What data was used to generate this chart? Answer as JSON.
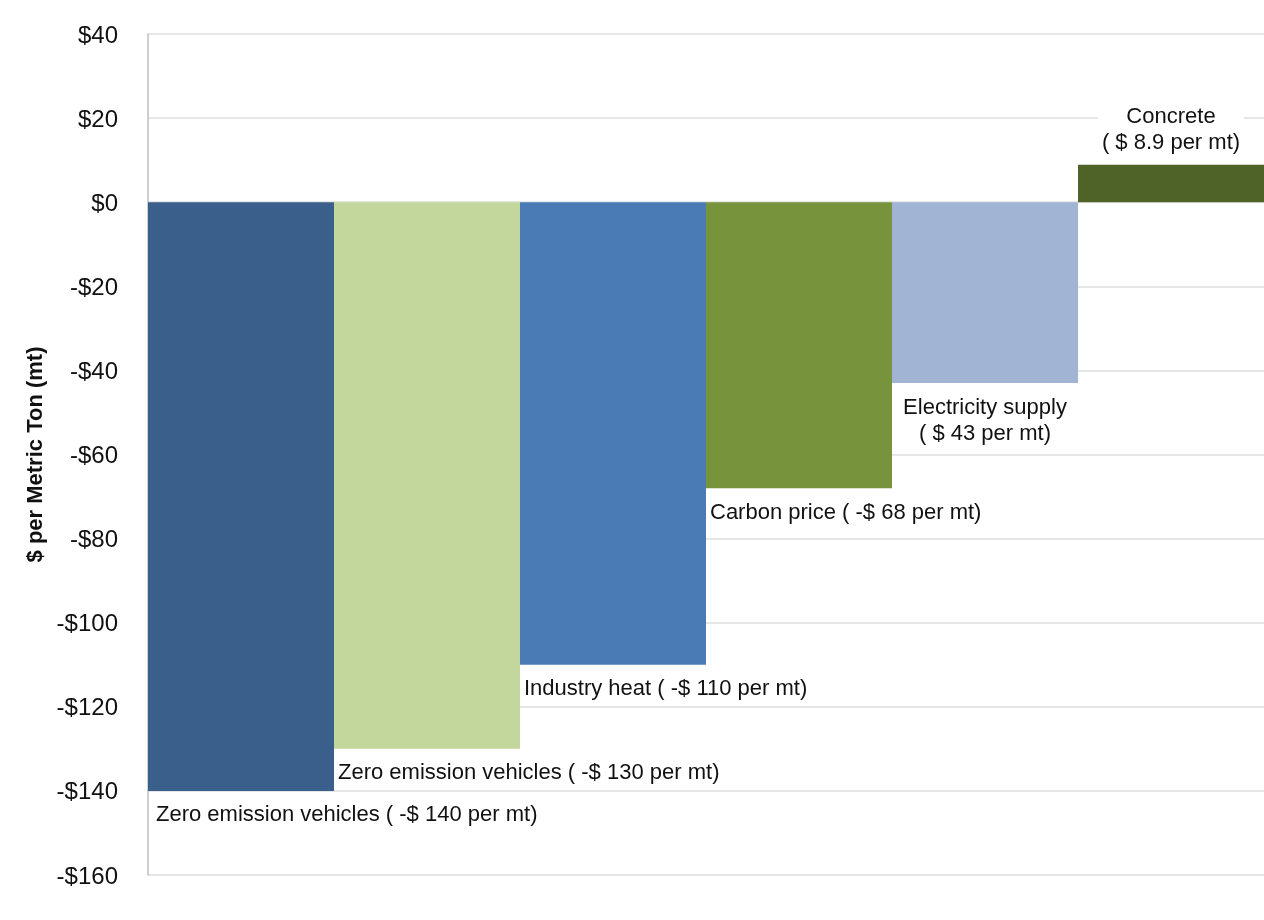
{
  "chart_data": {
    "type": "bar",
    "ylabel": "$ per Metric Ton (mt)",
    "categories": [
      null,
      null,
      null,
      null,
      null,
      null
    ],
    "values": [
      -140,
      -130,
      -110,
      -68,
      -43,
      8.9
    ],
    "colors": [
      "#3a5f8b",
      "#c3d69b",
      "#4a7bb4",
      "#77933c",
      "#a1b4d4",
      "#4f6228"
    ],
    "value_labels": [
      "Zero emission vehicles ( -$ 140 per mt)",
      "Zero emission vehicles ( -$ 130 per mt)",
      "Industry heat ( -$ 110 per mt)",
      "Carbon price ( -$ 68 per mt)",
      "Electricity supply\n( $ 43 per mt)",
      "Concrete\n( $ 8.9 per mt)"
    ],
    "ylim": [
      -160,
      40
    ],
    "yticks": [
      {
        "value": -160,
        "label": "-$160"
      },
      {
        "value": -140,
        "label": "-$140"
      },
      {
        "value": -120,
        "label": "-$120"
      },
      {
        "value": -100,
        "label": "-$100"
      },
      {
        "value": -80,
        "label": "-$80"
      },
      {
        "value": -60,
        "label": "-$60"
      },
      {
        "value": -40,
        "label": "-$40"
      },
      {
        "value": -20,
        "label": "-$20"
      },
      {
        "value": 0,
        "label": "$0"
      },
      {
        "value": 20,
        "label": "$20"
      },
      {
        "value": 40,
        "label": "$40"
      }
    ],
    "grid": "y",
    "tick_labels": "y"
  }
}
